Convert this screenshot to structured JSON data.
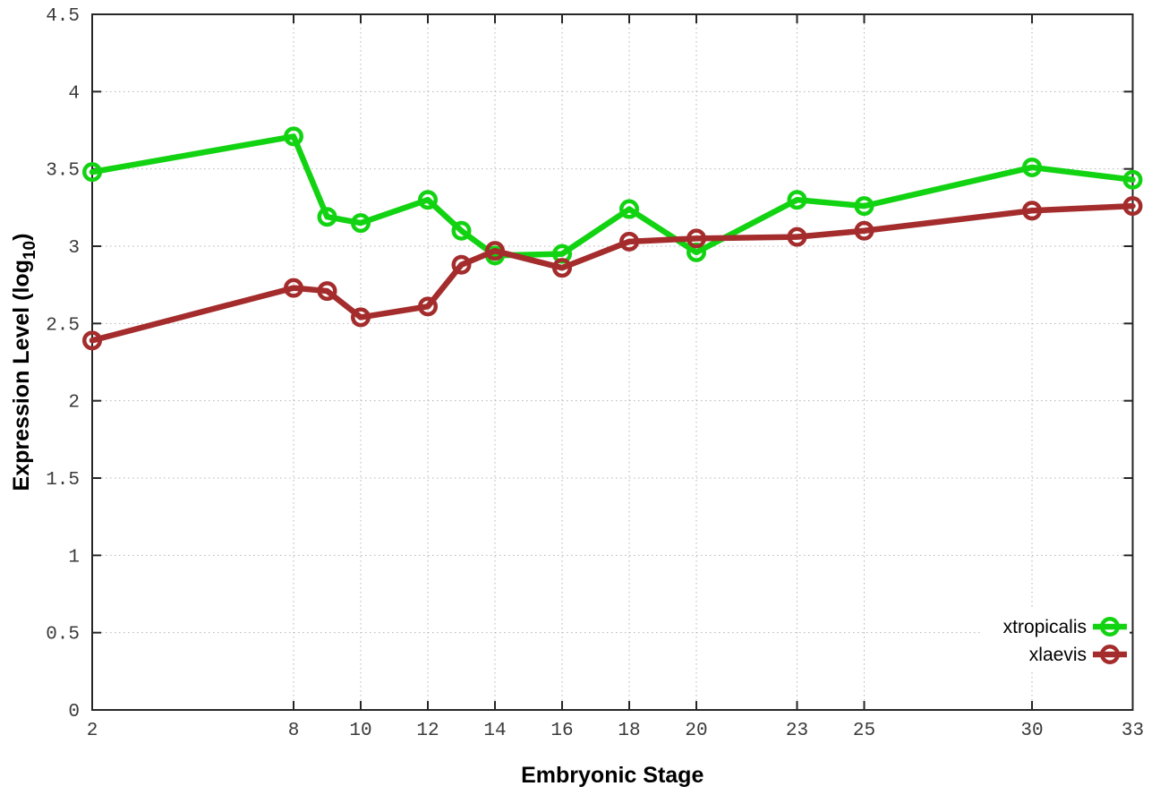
{
  "chart_data": {
    "type": "line",
    "title": "",
    "xlabel": "Embryonic Stage",
    "ylabel_parts": [
      "Expression Level (log",
      "10",
      ")"
    ],
    "x": [
      2,
      8,
      9,
      10,
      12,
      13,
      14,
      16,
      18,
      20,
      23,
      25,
      30,
      33
    ],
    "xlim": [
      2,
      33
    ],
    "ylim": [
      0,
      4.5
    ],
    "xticks": [
      2,
      8,
      10,
      12,
      14,
      16,
      18,
      20,
      23,
      25,
      30,
      33
    ],
    "xtick_labels": [
      "2",
      "8",
      "10",
      "12",
      "14",
      "16",
      "18",
      "20",
      "23",
      "25",
      "30",
      "33"
    ],
    "yticks": [
      0,
      0.5,
      1,
      1.5,
      2,
      2.5,
      3,
      3.5,
      4,
      4.5
    ],
    "ytick_labels": [
      "0",
      "0.5",
      "1",
      "1.5",
      "2",
      "2.5",
      "3",
      "3.5",
      "4",
      "4.5"
    ],
    "grid": true,
    "legend_position": "bottom-right",
    "series": [
      {
        "name": "xtropicalis",
        "color": "#12d312",
        "marker": "open-circle",
        "values": [
          3.48,
          3.71,
          3.19,
          3.15,
          3.3,
          3.1,
          2.94,
          2.95,
          3.24,
          2.96,
          3.3,
          3.26,
          3.51,
          3.43
        ]
      },
      {
        "name": "xlaevis",
        "color": "#a42c2c",
        "marker": "open-circle",
        "values": [
          2.39,
          2.73,
          2.71,
          2.54,
          2.61,
          2.88,
          2.97,
          2.86,
          3.03,
          3.05,
          3.06,
          3.1,
          3.23,
          3.26
        ]
      }
    ]
  },
  "style_colors": {
    "border": "#262626",
    "grid": "#b3b3b3",
    "tick_text": "#3a3a3a",
    "label_text": "#000000",
    "background": "#ffffff"
  }
}
